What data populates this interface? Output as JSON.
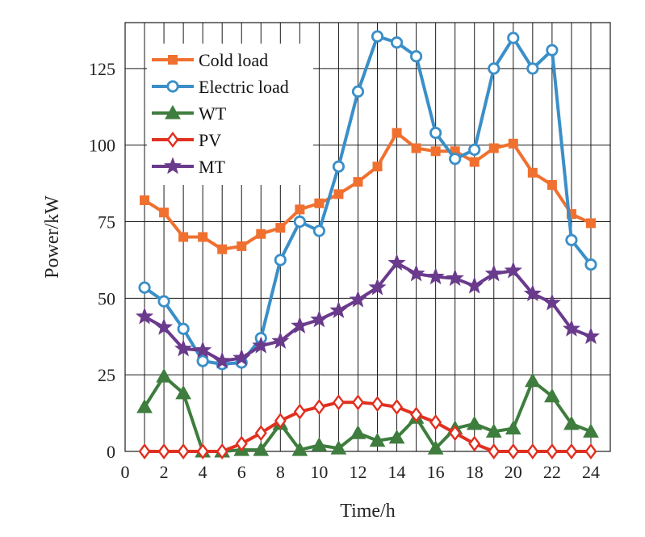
{
  "chart_data": {
    "type": "line",
    "title": "",
    "xlabel": "Time/h",
    "ylabel": "Power/kW",
    "xlim": [
      0,
      25
    ],
    "ylim": [
      0,
      140
    ],
    "xticks": [
      0,
      2,
      4,
      6,
      8,
      10,
      12,
      14,
      16,
      18,
      20,
      22,
      24
    ],
    "yticks": [
      0,
      25,
      50,
      75,
      100,
      125
    ],
    "grid": "vertical every 1 h, horizontal every 25 kW",
    "legend_position": "top-left",
    "x": [
      1,
      2,
      3,
      4,
      5,
      6,
      7,
      8,
      9,
      10,
      11,
      12,
      13,
      14,
      15,
      16,
      17,
      18,
      19,
      20,
      21,
      22,
      23,
      24
    ],
    "series": [
      {
        "name": "Cold load",
        "color": "#f07030",
        "marker": "square",
        "values": [
          82,
          78,
          70,
          70,
          66,
          67,
          71,
          73,
          79,
          81,
          84,
          88,
          93,
          104,
          99,
          98,
          98,
          94.5,
          99,
          100.5,
          91,
          87,
          77.5,
          74.5
        ]
      },
      {
        "name": "Electric load",
        "color": "#3a8fc8",
        "marker": "circle",
        "values": [
          53.5,
          49,
          40,
          29.5,
          28.5,
          29,
          37,
          62.5,
          75,
          72,
          93,
          117.5,
          135.5,
          133.5,
          129,
          104,
          95.5,
          98.5,
          125,
          135,
          125,
          131,
          69,
          61
        ]
      },
      {
        "name": "WT",
        "color": "#3e7d3e",
        "marker": "triangle",
        "values": [
          14.5,
          24.5,
          19,
          0,
          0,
          0.5,
          0.5,
          9,
          0.5,
          2,
          1,
          6,
          3.5,
          4.5,
          11,
          1,
          7.5,
          9,
          6.5,
          7.5,
          23,
          18,
          9,
          6.5
        ]
      },
      {
        "name": "PV",
        "color": "#e03020",
        "marker": "diamond",
        "values": [
          0,
          0,
          0,
          0,
          0,
          2.5,
          6,
          10,
          13,
          14.5,
          16,
          16,
          15.5,
          14.5,
          12,
          9.5,
          6,
          2.5,
          0,
          0,
          0,
          0,
          0,
          0
        ]
      },
      {
        "name": "MT",
        "color": "#6a3a8c",
        "marker": "star",
        "values": [
          44,
          40.5,
          33.5,
          33,
          29.5,
          30.5,
          34.5,
          36,
          41,
          43,
          46,
          49.5,
          53.5,
          61.5,
          58,
          57,
          56.5,
          54,
          58,
          59,
          51.5,
          48.5,
          40,
          37.5
        ]
      }
    ]
  }
}
